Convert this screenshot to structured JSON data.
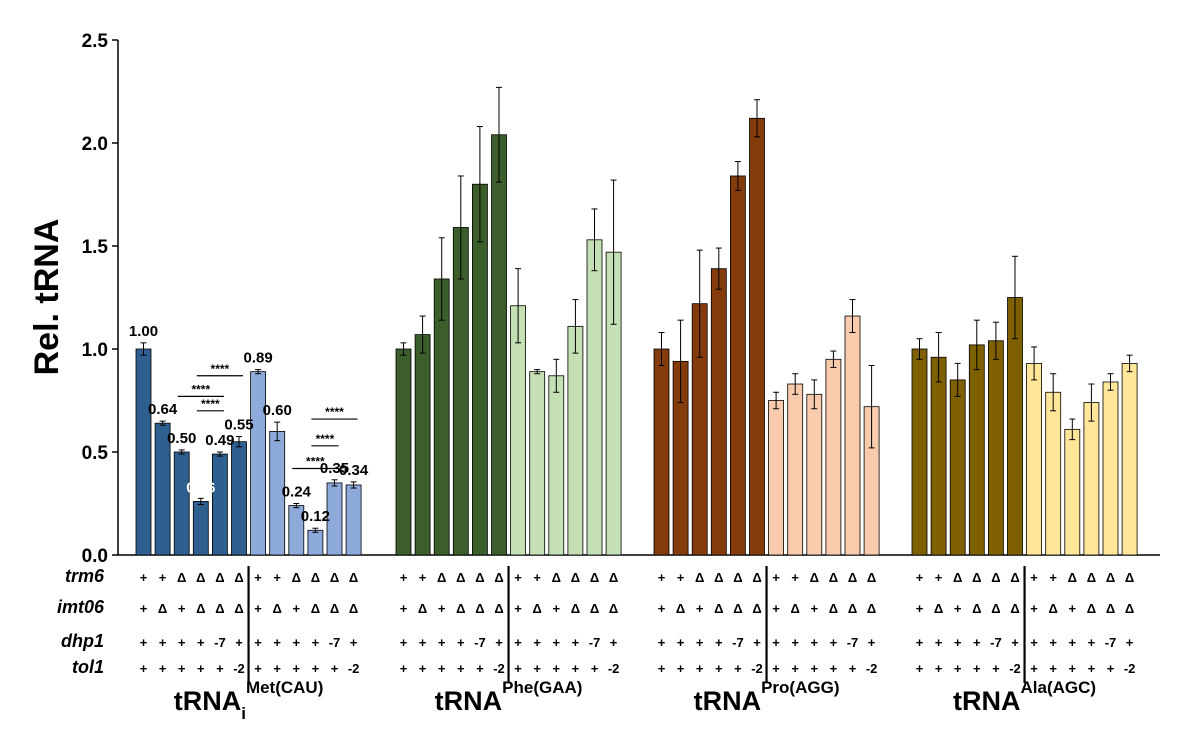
{
  "chart_data": {
    "type": "bar",
    "ylabel": "Rel. tRNA",
    "ylim": [
      0,
      2.5
    ],
    "yticks": [
      "0.0",
      "0.5",
      "1.0",
      "1.5",
      "2.0",
      "2.5"
    ],
    "ytick_values": [
      0,
      0.5,
      1.0,
      1.5,
      2.0,
      2.5
    ],
    "grid": false,
    "groups": [
      {
        "label": "tRNA",
        "subscript": "i",
        "superscript": "Met(CAU)",
        "dark_color": "#2e5f8f",
        "light_color": "#8eaadb",
        "values": [
          1.0,
          0.64,
          0.5,
          0.26,
          0.49,
          0.55,
          0.89,
          0.6,
          0.24,
          0.12,
          0.35,
          0.34
        ],
        "errors": [
          0.03,
          0.01,
          0.01,
          0.015,
          0.01,
          0.025,
          0.01,
          0.045,
          0.01,
          0.01,
          0.015,
          0.015
        ],
        "value_labels": [
          "1.00",
          "0.64",
          "0.50",
          "0.26",
          "0.49",
          "0.55",
          "0.89",
          "0.60",
          "0.24",
          "0.12",
          "0.35",
          "0.34"
        ]
      },
      {
        "label": "tRNA",
        "subscript": "",
        "superscript": "Phe(GAA)",
        "dark_color": "#3b5e2b",
        "light_color": "#c5e0b4",
        "values": [
          1.0,
          1.07,
          1.34,
          1.59,
          1.8,
          2.04,
          1.21,
          0.89,
          0.87,
          1.11,
          1.53,
          1.47
        ],
        "errors": [
          0.03,
          0.09,
          0.2,
          0.25,
          0.28,
          0.23,
          0.18,
          0.01,
          0.08,
          0.13,
          0.15,
          0.35
        ],
        "value_labels": []
      },
      {
        "label": "tRNA",
        "subscript": "",
        "superscript": "Pro(AGG)",
        "dark_color": "#843c0c",
        "light_color": "#f8cbad",
        "values": [
          1.0,
          0.94,
          1.22,
          1.39,
          1.84,
          2.12,
          0.75,
          0.83,
          0.78,
          0.95,
          1.16,
          0.72
        ],
        "errors": [
          0.08,
          0.2,
          0.26,
          0.1,
          0.07,
          0.09,
          0.04,
          0.05,
          0.07,
          0.04,
          0.08,
          0.2
        ],
        "value_labels": []
      },
      {
        "label": "tRNA",
        "subscript": "",
        "superscript": "Ala(AGC)",
        "dark_color": "#7f6000",
        "light_color": "#ffe699",
        "values": [
          1.0,
          0.96,
          0.85,
          1.02,
          1.04,
          1.25,
          0.93,
          0.79,
          0.61,
          0.74,
          0.84,
          0.93
        ],
        "errors": [
          0.05,
          0.12,
          0.08,
          0.12,
          0.09,
          0.2,
          0.08,
          0.09,
          0.05,
          0.09,
          0.04,
          0.04
        ],
        "value_labels": []
      }
    ],
    "significance": [
      {
        "label": "****",
        "from_bar": 2,
        "to_bar": 4,
        "y": 0.77
      },
      {
        "label": "****",
        "from_bar": 3,
        "to_bar": 4,
        "y": 0.7
      },
      {
        "label": "****",
        "from_bar": 3,
        "to_bar": 5,
        "y": 0.87
      },
      {
        "label": "****",
        "from_bar": 8,
        "to_bar": 10,
        "y": 0.42
      },
      {
        "label": "****",
        "from_bar": 9,
        "to_bar": 10,
        "y": 0.53
      },
      {
        "label": "****",
        "from_bar": 9,
        "to_bar": 11,
        "y": 0.66
      }
    ],
    "genotype_rows": [
      {
        "name": "trm6",
        "cells": [
          "+",
          "+",
          "Δ",
          "Δ",
          "Δ",
          "Δ",
          "+",
          "+",
          "Δ",
          "Δ",
          "Δ",
          "Δ"
        ]
      },
      {
        "name": "imt06",
        "cells": [
          "+",
          "Δ",
          "+",
          "Δ",
          "Δ",
          "Δ",
          "+",
          "Δ",
          "+",
          "Δ",
          "Δ",
          "Δ"
        ]
      },
      {
        "name": "dhp1",
        "cells": [
          "+",
          "+",
          "+",
          "+",
          "-7",
          "+",
          "+",
          "+",
          "+",
          "+",
          "-7",
          "+"
        ]
      },
      {
        "name": "tol1",
        "cells": [
          "+",
          "+",
          "+",
          "+",
          "+",
          "-2",
          "+",
          "+",
          "+",
          "+",
          "+",
          "-2"
        ]
      }
    ]
  }
}
